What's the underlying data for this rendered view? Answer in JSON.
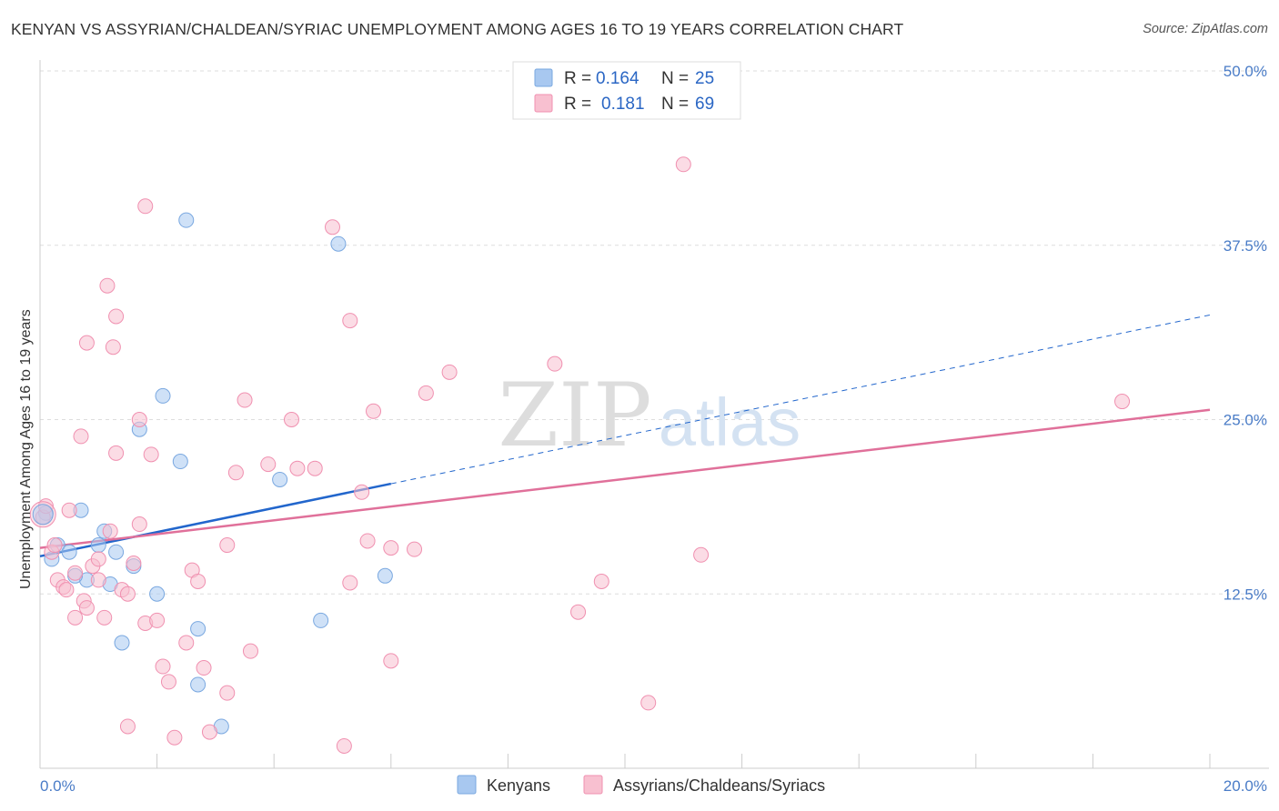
{
  "header": {
    "title": "KENYAN VS ASSYRIAN/CHALDEAN/SYRIAC UNEMPLOYMENT AMONG AGES 16 TO 19 YEARS CORRELATION CHART",
    "source": "Source: ZipAtlas.com"
  },
  "watermark": {
    "zip": "ZIP",
    "atlas": "atlas"
  },
  "chart_data": {
    "type": "scatter",
    "ylabel": "Unemployment Among Ages 16 to 19 years",
    "xlabel": "",
    "xlim": [
      0,
      20
    ],
    "ylim": [
      0,
      50
    ],
    "x_tick_labels": [
      "0.0%",
      "20.0%"
    ],
    "y_ticks": [
      12.5,
      25.0,
      37.5,
      50.0
    ],
    "y_tick_labels": [
      "12.5%",
      "25.0%",
      "37.5%",
      "50.0%"
    ],
    "grid": true,
    "legend_position": "top-center",
    "series": [
      {
        "name": "Kenyans",
        "color": "#a8c8f0",
        "stroke": "#7aa8e0",
        "line_color": "#2266cc",
        "R": "0.164",
        "N": "25",
        "trend": {
          "x0": 0,
          "y0": 15.2,
          "x1": 6,
          "y1": 20.4,
          "x_dash_end": 20,
          "y_dash_end": 32.5
        },
        "points": [
          [
            0.1,
            18.3
          ],
          [
            0.2,
            15.0
          ],
          [
            0.3,
            16.0
          ],
          [
            0.5,
            15.5
          ],
          [
            0.7,
            18.5
          ],
          [
            0.8,
            13.5
          ],
          [
            1.0,
            16.0
          ],
          [
            1.1,
            17.0
          ],
          [
            1.2,
            13.2
          ],
          [
            1.3,
            15.5
          ],
          [
            1.4,
            9.0
          ],
          [
            1.6,
            14.5
          ],
          [
            1.7,
            24.3
          ],
          [
            2.0,
            12.5
          ],
          [
            2.1,
            26.7
          ],
          [
            2.4,
            22.0
          ],
          [
            2.5,
            39.3
          ],
          [
            2.7,
            10.0
          ],
          [
            2.7,
            6.0
          ],
          [
            3.1,
            3.0
          ],
          [
            4.1,
            20.7
          ],
          [
            4.8,
            10.6
          ],
          [
            5.1,
            37.6
          ],
          [
            5.9,
            13.8
          ],
          [
            0.6,
            13.8
          ]
        ]
      },
      {
        "name": "Assyrians/Chaldeans/Syriacs",
        "color": "#f8c0d0",
        "stroke": "#f090b0",
        "line_color": "#e0709a",
        "R": "0.181",
        "N": "69",
        "trend": {
          "x0": 0,
          "y0": 15.8,
          "x1": 20,
          "y1": 25.7
        },
        "points": [
          [
            0.05,
            18.0
          ],
          [
            0.1,
            18.8
          ],
          [
            0.2,
            15.5
          ],
          [
            0.25,
            16.0
          ],
          [
            0.3,
            13.5
          ],
          [
            0.4,
            13.0
          ],
          [
            0.45,
            12.8
          ],
          [
            0.5,
            18.5
          ],
          [
            0.6,
            14.0
          ],
          [
            0.6,
            10.8
          ],
          [
            0.7,
            23.8
          ],
          [
            0.75,
            12.0
          ],
          [
            0.8,
            30.5
          ],
          [
            0.8,
            11.5
          ],
          [
            0.9,
            14.5
          ],
          [
            1.0,
            13.5
          ],
          [
            1.0,
            15.0
          ],
          [
            1.1,
            10.8
          ],
          [
            1.15,
            34.6
          ],
          [
            1.2,
            17.0
          ],
          [
            1.25,
            30.2
          ],
          [
            1.3,
            32.4
          ],
          [
            1.3,
            22.6
          ],
          [
            1.4,
            12.8
          ],
          [
            1.5,
            12.5
          ],
          [
            1.5,
            3.0
          ],
          [
            1.6,
            14.7
          ],
          [
            1.7,
            17.5
          ],
          [
            1.7,
            25.0
          ],
          [
            1.8,
            10.4
          ],
          [
            1.8,
            40.3
          ],
          [
            1.9,
            22.5
          ],
          [
            2.0,
            10.6
          ],
          [
            2.1,
            7.3
          ],
          [
            2.2,
            6.2
          ],
          [
            2.3,
            2.2
          ],
          [
            2.5,
            9.0
          ],
          [
            2.6,
            14.2
          ],
          [
            2.7,
            13.4
          ],
          [
            2.8,
            7.2
          ],
          [
            2.9,
            2.6
          ],
          [
            3.2,
            5.4
          ],
          [
            3.2,
            16.0
          ],
          [
            3.35,
            21.2
          ],
          [
            3.5,
            26.4
          ],
          [
            3.6,
            8.4
          ],
          [
            3.9,
            21.8
          ],
          [
            4.3,
            25.0
          ],
          [
            4.4,
            21.5
          ],
          [
            4.7,
            21.5
          ],
          [
            5.0,
            38.8
          ],
          [
            5.2,
            1.6
          ],
          [
            5.3,
            32.1
          ],
          [
            5.3,
            13.3
          ],
          [
            5.5,
            19.8
          ],
          [
            5.6,
            16.3
          ],
          [
            5.7,
            25.6
          ],
          [
            6.0,
            7.7
          ],
          [
            6.0,
            15.8
          ],
          [
            6.4,
            15.7
          ],
          [
            6.6,
            26.9
          ],
          [
            7.0,
            28.4
          ],
          [
            8.8,
            29.0
          ],
          [
            9.2,
            11.2
          ],
          [
            9.6,
            13.4
          ],
          [
            10.4,
            4.7
          ],
          [
            11.0,
            43.3
          ],
          [
            11.3,
            15.3
          ],
          [
            18.5,
            26.3
          ]
        ]
      }
    ]
  }
}
